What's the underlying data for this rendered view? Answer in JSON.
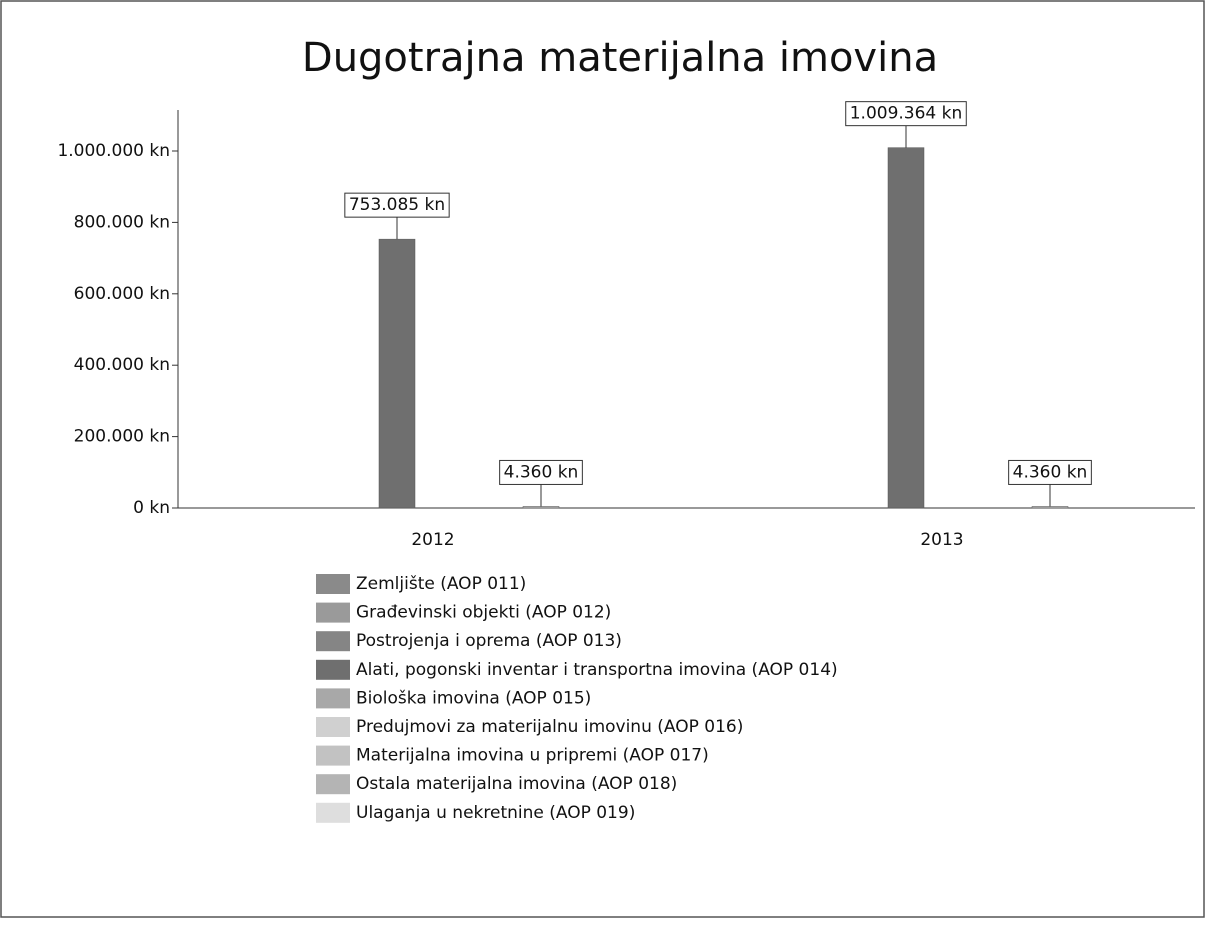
{
  "chart_data": {
    "type": "bar",
    "title": "Dugotrajna materijalna imovina",
    "categories": [
      "2012",
      "2013"
    ],
    "series": [
      {
        "name": "Zemljište (AOP 011)",
        "color": "#8a8a8a",
        "values": [
          0,
          0
        ]
      },
      {
        "name": "Građevinski objekti (AOP 012)",
        "color": "#9a9a9a",
        "values": [
          0,
          0
        ]
      },
      {
        "name": "Postrojenja i oprema (AOP 013)",
        "color": "#858585",
        "values": [
          0,
          0
        ]
      },
      {
        "name": "Alati, pogonski inventar i transportna imovina (AOP 014)",
        "color": "#6f6f6f",
        "values": [
          753085,
          1009364
        ],
        "value_labels": [
          "753.085 kn",
          "1.009.364 kn"
        ]
      },
      {
        "name": "Biološka imovina (AOP 015)",
        "color": "#a8a8a8",
        "values": [
          0,
          0
        ]
      },
      {
        "name": "Predujmovi za materijalnu imovinu (AOP 016)",
        "color": "#d0d0d0",
        "values": [
          0,
          0
        ]
      },
      {
        "name": "Materijalna imovina u pripremi (AOP 017)",
        "color": "#c2c2c2",
        "values": [
          0,
          0
        ]
      },
      {
        "name": "Ostala materijalna imovina (AOP 018)",
        "color": "#b4b4b4",
        "values": [
          4360,
          4360
        ],
        "value_labels": [
          "4.360 kn",
          "4.360 kn"
        ]
      },
      {
        "name": "Ulaganja u nekretnine (AOP 019)",
        "color": "#dedede",
        "values": [
          0,
          0
        ]
      }
    ],
    "ylim": [
      0,
      1100000
    ],
    "yticks": [
      {
        "value": 0,
        "label": "0 kn"
      },
      {
        "value": 200000,
        "label": "200.000 kn"
      },
      {
        "value": 400000,
        "label": "400.000 kn"
      },
      {
        "value": 600000,
        "label": "600.000 kn"
      },
      {
        "value": 800000,
        "label": "800.000 kn"
      },
      {
        "value": 1000000,
        "label": "1.000.000 kn"
      }
    ],
    "grid": false
  }
}
